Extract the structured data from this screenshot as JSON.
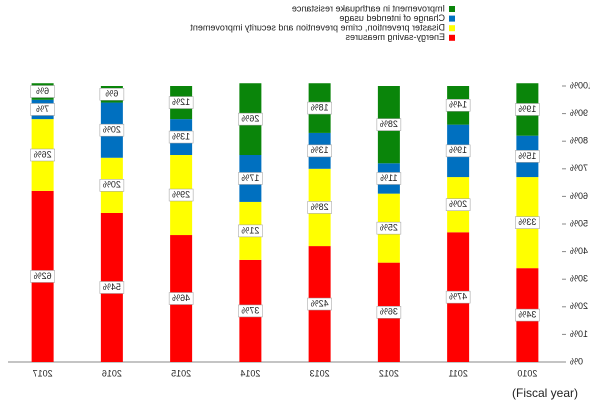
{
  "chart_data": {
    "type": "stacked-bar",
    "x_label": "(Fiscal year)",
    "categories": [
      "2010",
      "2011",
      "2012",
      "2013",
      "2014",
      "2015",
      "2016",
      "2017"
    ],
    "series": [
      {
        "name": "Energy-saving measures",
        "color": "#ff0000",
        "values": [
          34,
          47,
          36,
          42,
          37,
          46,
          54,
          62
        ],
        "value_labels": [
          "34%",
          "47%",
          "36%",
          "42%",
          "37%",
          "46%",
          "54%",
          "62%"
        ]
      },
      {
        "name": "Disaster prevention, crime prevention and security improvement",
        "color": "#ffff00",
        "values": [
          33,
          20,
          25,
          28,
          21,
          29,
          20,
          26
        ],
        "value_labels": [
          "33%",
          "20%",
          "25%",
          "28%",
          "21%",
          "29%",
          "20%",
          "26%"
        ]
      },
      {
        "name": "Change of intended usage",
        "color": "#0070c0",
        "values": [
          15,
          19,
          11,
          13,
          17,
          13,
          20,
          7
        ],
        "value_labels": [
          "15%",
          "19%",
          "11%",
          "13%",
          "17%",
          "13%",
          "20%",
          "7%"
        ]
      },
      {
        "name": "Improvement in earthquake resistance",
        "color": "#0a850a",
        "values": [
          19,
          14,
          28,
          18,
          26,
          12,
          6,
          6
        ],
        "value_labels": [
          "19%",
          "14%",
          "28%",
          "18%",
          "26%",
          "12%",
          "6%",
          "6%"
        ]
      }
    ],
    "ylim": [
      0,
      100
    ],
    "yticks": [
      {
        "value": 0,
        "label": "0%"
      },
      {
        "value": 10,
        "label": "10%"
      },
      {
        "value": 20,
        "label": "20%"
      },
      {
        "value": 30,
        "label": "30%"
      },
      {
        "value": 40,
        "label": "40%"
      },
      {
        "value": 50,
        "label": "50%"
      },
      {
        "value": 60,
        "label": "60%"
      },
      {
        "value": 70,
        "label": "70%"
      },
      {
        "value": 80,
        "label": "80%"
      },
      {
        "value": 90,
        "label": "90%"
      },
      {
        "value": 100,
        "label": "100%"
      }
    ],
    "mirrored": true
  }
}
